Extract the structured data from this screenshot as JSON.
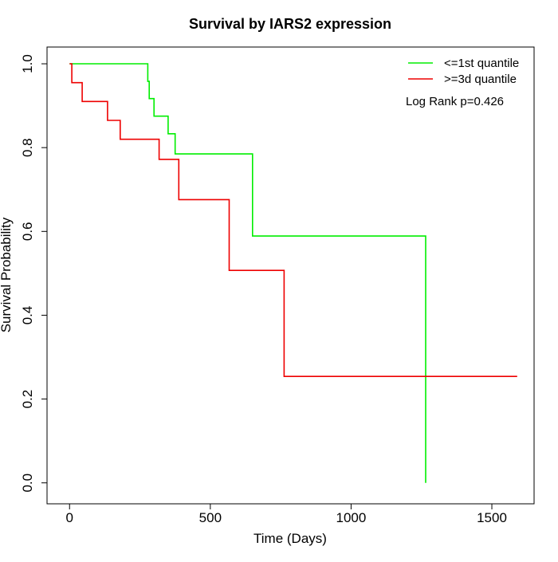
{
  "chart_data": {
    "type": "line",
    "title": "Survival by IARS2 expression",
    "xlabel": "Time (Days)",
    "ylabel": "Survival Probability",
    "xlim": [
      -80,
      1650
    ],
    "ylim": [
      -0.05,
      1.04
    ],
    "x_ticks": [
      0,
      500,
      1000,
      1500
    ],
    "x_tick_labels": [
      "0",
      "500",
      "1000",
      "1500"
    ],
    "y_ticks": [
      0.0,
      0.2,
      0.4,
      0.6,
      0.8,
      1.0
    ],
    "y_tick_labels": [
      "0.0",
      "0.2",
      "0.4",
      "0.6",
      "0.8",
      "1.0"
    ],
    "grid": false,
    "legend_position": "top-right",
    "annotation": "Log Rank p=0.426",
    "series": [
      {
        "name": "<=1st quantile",
        "color": "#00ee00",
        "step_points": [
          [
            0,
            1.0
          ],
          [
            278,
            1.0
          ],
          [
            278,
            0.958
          ],
          [
            283,
            0.958
          ],
          [
            283,
            0.917
          ],
          [
            300,
            0.917
          ],
          [
            300,
            0.875
          ],
          [
            350,
            0.875
          ],
          [
            350,
            0.833
          ],
          [
            375,
            0.833
          ],
          [
            375,
            0.785
          ],
          [
            650,
            0.785
          ],
          [
            650,
            0.589
          ],
          [
            1265,
            0.589
          ],
          [
            1265,
            0.0
          ]
        ]
      },
      {
        "name": ">=3d quantile",
        "color": "#ee0000",
        "step_points": [
          [
            0,
            1.0
          ],
          [
            8,
            1.0
          ],
          [
            8,
            0.955
          ],
          [
            45,
            0.955
          ],
          [
            45,
            0.91
          ],
          [
            135,
            0.91
          ],
          [
            135,
            0.865
          ],
          [
            180,
            0.865
          ],
          [
            180,
            0.82
          ],
          [
            318,
            0.82
          ],
          [
            318,
            0.772
          ],
          [
            388,
            0.772
          ],
          [
            388,
            0.676
          ],
          [
            567,
            0.676
          ],
          [
            567,
            0.507
          ],
          [
            762,
            0.507
          ],
          [
            762,
            0.254
          ],
          [
            1590,
            0.254
          ]
        ]
      }
    ]
  }
}
